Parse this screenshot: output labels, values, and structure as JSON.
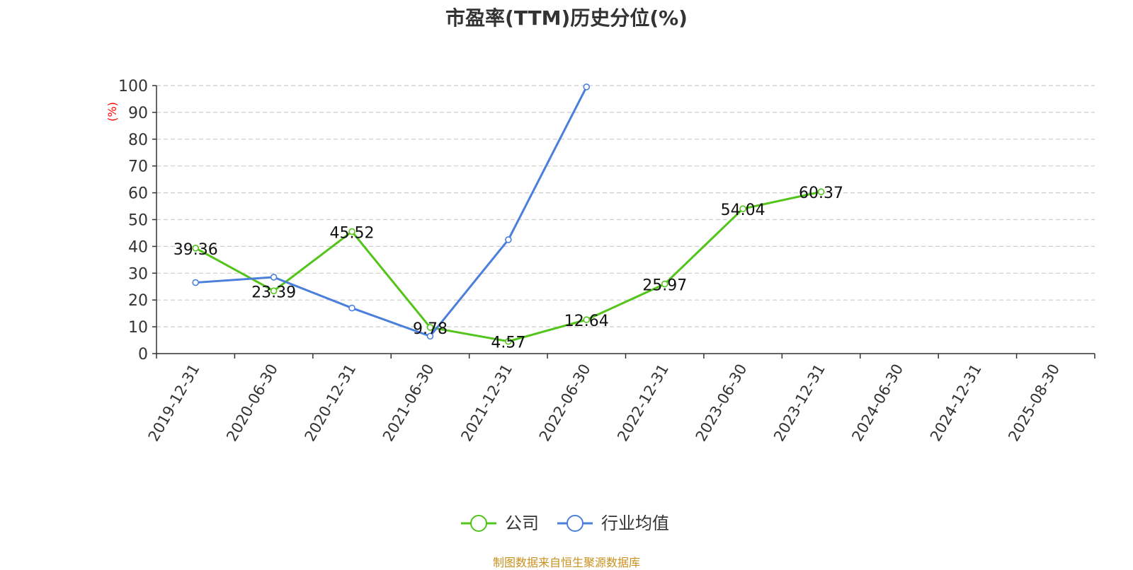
{
  "colors": {
    "company": "#52c41a",
    "industry": "#4a7fdc",
    "axis": "#333333",
    "grid": "#cccccc",
    "unit": "#ff0000",
    "source": "#c8901e"
  },
  "chart_data": {
    "type": "line",
    "title": "市盈率(TTM)历史分位(%)",
    "ylabel": "(%)",
    "ylim": [
      0,
      100
    ],
    "yticks": [
      0,
      10,
      20,
      30,
      40,
      50,
      60,
      70,
      80,
      90,
      100
    ],
    "grid": true,
    "legend_position": "bottom-center",
    "categories": [
      "2019-12-31",
      "2020-06-30",
      "2020-12-31",
      "2021-06-30",
      "2021-12-31",
      "2022-06-30",
      "2022-12-31",
      "2023-06-30",
      "2023-12-31",
      "2024-06-30",
      "2024-12-31",
      "2025-08-30"
    ],
    "series": [
      {
        "name": "公司",
        "color_key": "company",
        "values": [
          39.36,
          23.39,
          45.52,
          9.78,
          4.57,
          12.64,
          25.97,
          54.04,
          60.37,
          null,
          null,
          null
        ],
        "labels": [
          "39.36",
          "23.39",
          "45.52",
          "9.78",
          "4.57",
          "12.64",
          "25.97",
          "54.04",
          "60.37",
          null,
          null,
          null
        ]
      },
      {
        "name": "行业均值",
        "color_key": "industry",
        "values": [
          26.5,
          28.5,
          17.0,
          6.5,
          42.5,
          99.5,
          null,
          null,
          null,
          null,
          null,
          null
        ],
        "labels": null
      }
    ]
  },
  "source_note": "制图数据来自恒生聚源数据库"
}
